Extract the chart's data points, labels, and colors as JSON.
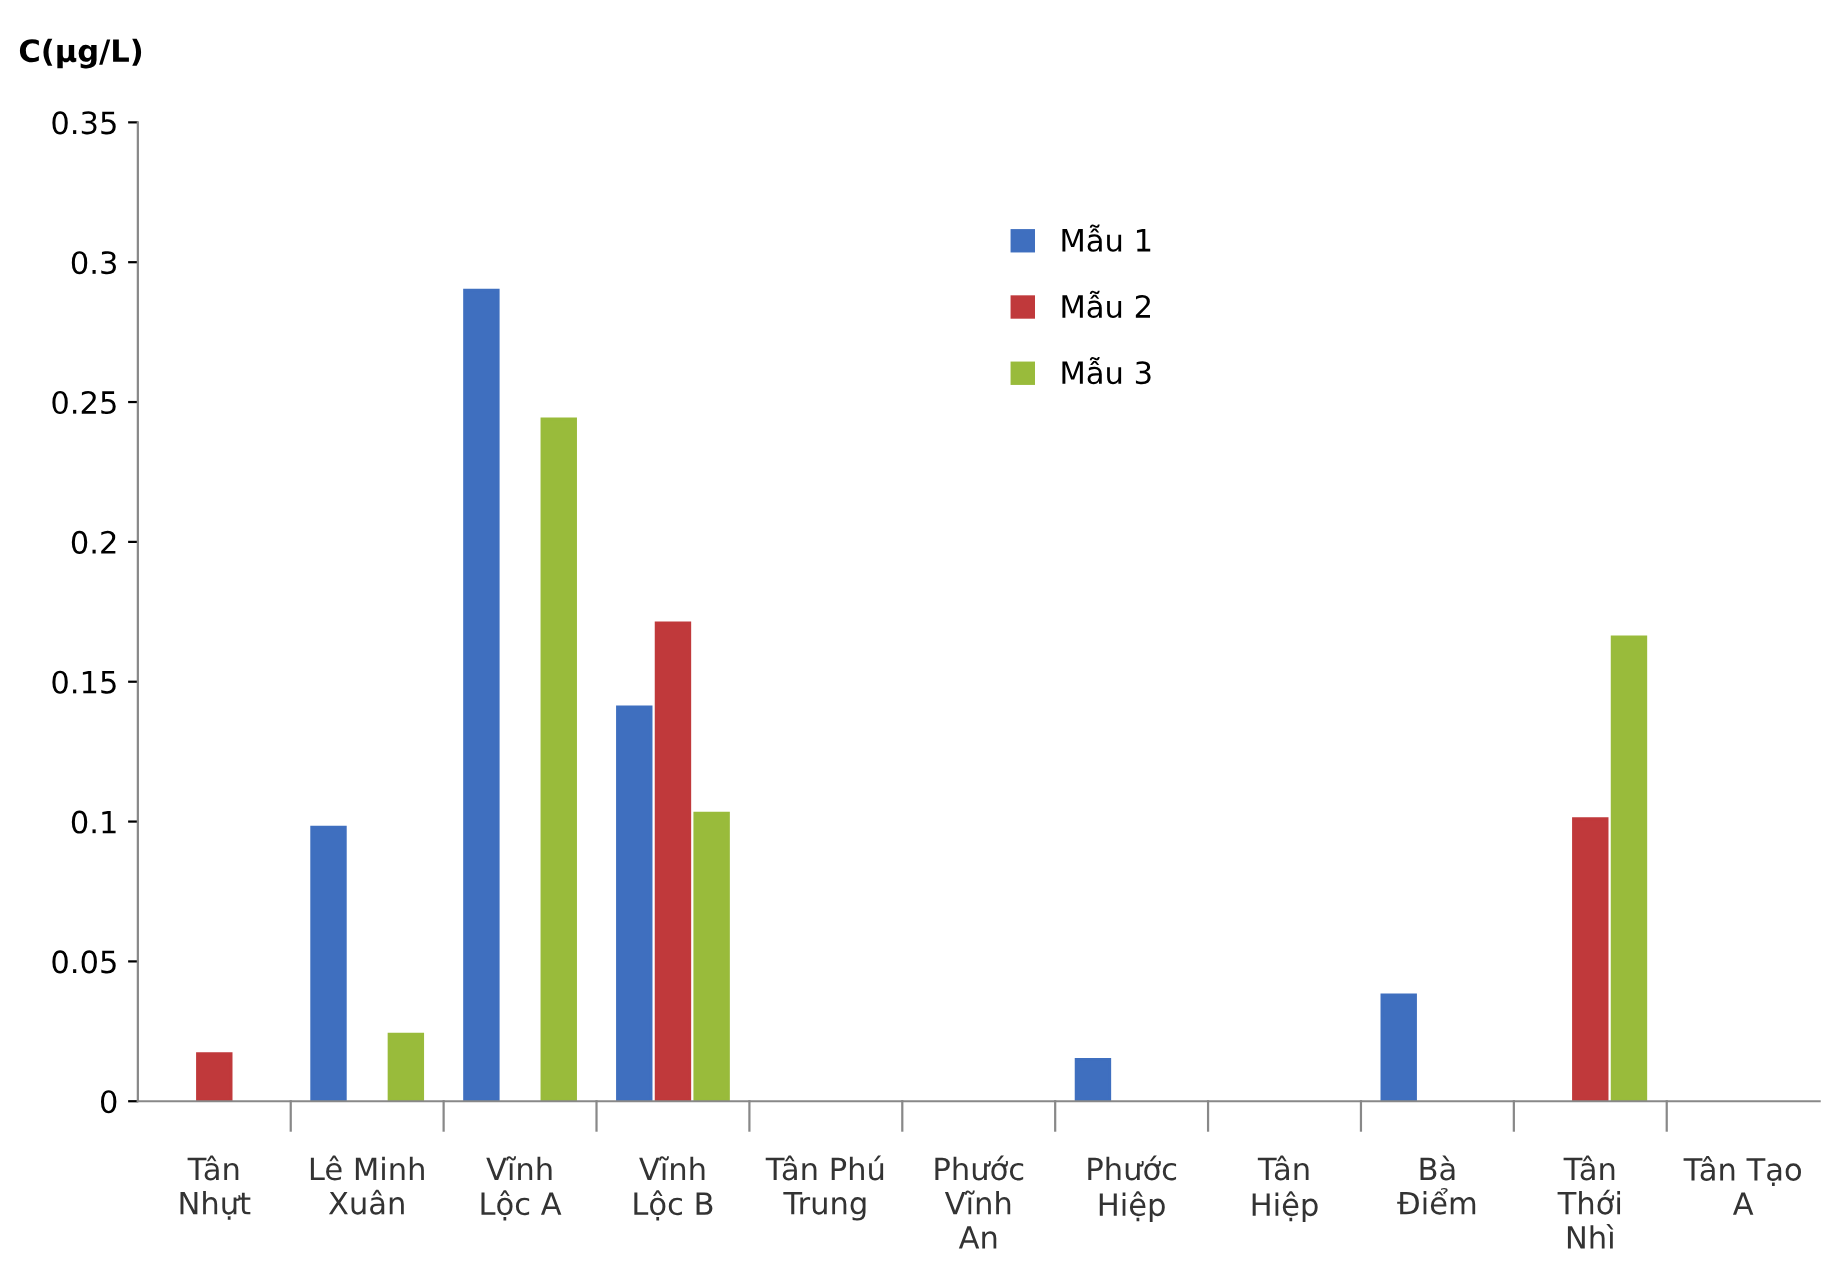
{
  "chart_data": {
    "type": "bar",
    "ylabel": "C(µg/L)",
    "categories": [
      "Tân\nNhựt",
      "Lê Minh\nXuân",
      "Vĩnh\nLộc A",
      "Vĩnh\nLộc B",
      "Tân Phú\nTrung",
      "Phước\nVĩnh\nAn",
      "Phước\nHiệp",
      "Tân\nHiệp",
      "Bà\nĐiểm",
      "Tân\nThới\nNhì",
      "Tân Tạo\nA"
    ],
    "series": [
      {
        "name": "Mẫu 1",
        "color": "#3f6fbf",
        "values": [
          null,
          0.098,
          0.29,
          0.141,
          null,
          null,
          0.015,
          null,
          0.038,
          null,
          null
        ]
      },
      {
        "name": "Mẫu 2",
        "color": "#c0393b",
        "values": [
          0.017,
          null,
          null,
          0.171,
          null,
          null,
          null,
          null,
          null,
          0.101,
          null
        ]
      },
      {
        "name": "Mẫu 3",
        "color": "#99bb3b",
        "values": [
          null,
          0.024,
          0.244,
          0.103,
          null,
          null,
          null,
          null,
          null,
          0.166,
          null
        ]
      }
    ],
    "ylim": [
      0,
      0.35
    ],
    "yticks": [
      0,
      0.05,
      0.1,
      0.15,
      0.2,
      0.25,
      0.3,
      0.35
    ],
    "grid": false,
    "legend": "top"
  }
}
